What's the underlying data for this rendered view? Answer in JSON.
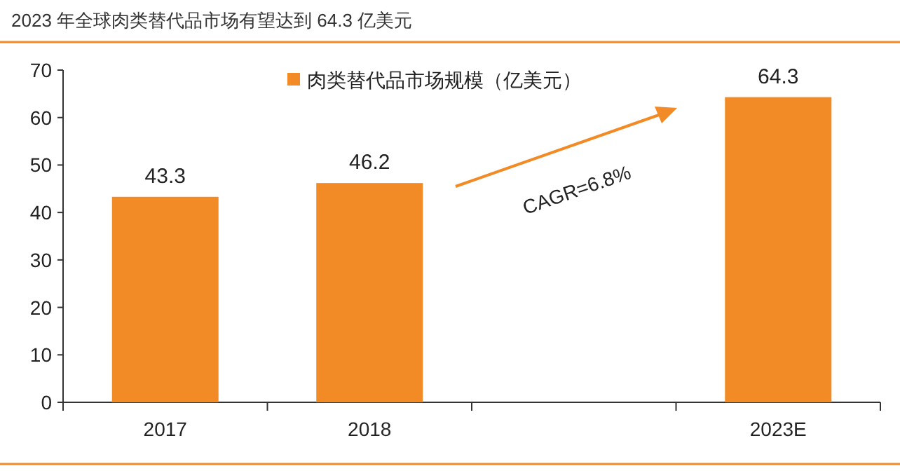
{
  "chart_data": {
    "type": "bar",
    "title": "2023 年全球肉类替代品市场有望达到 64.3 亿美元",
    "categories": [
      "2017",
      "2018",
      null,
      "2023E"
    ],
    "series": [
      {
        "name": "肉类替代品市场规模（亿美元）",
        "color": "#f28a25",
        "values": [
          43.3,
          46.2,
          null,
          64.3
        ]
      }
    ],
    "ylim": [
      0,
      70
    ],
    "yticks": [
      0,
      10,
      20,
      30,
      40,
      50,
      60,
      70
    ],
    "data_labels": true,
    "legend": "top",
    "grid": false,
    "annotations": [
      "CAGR=6.8%"
    ]
  }
}
